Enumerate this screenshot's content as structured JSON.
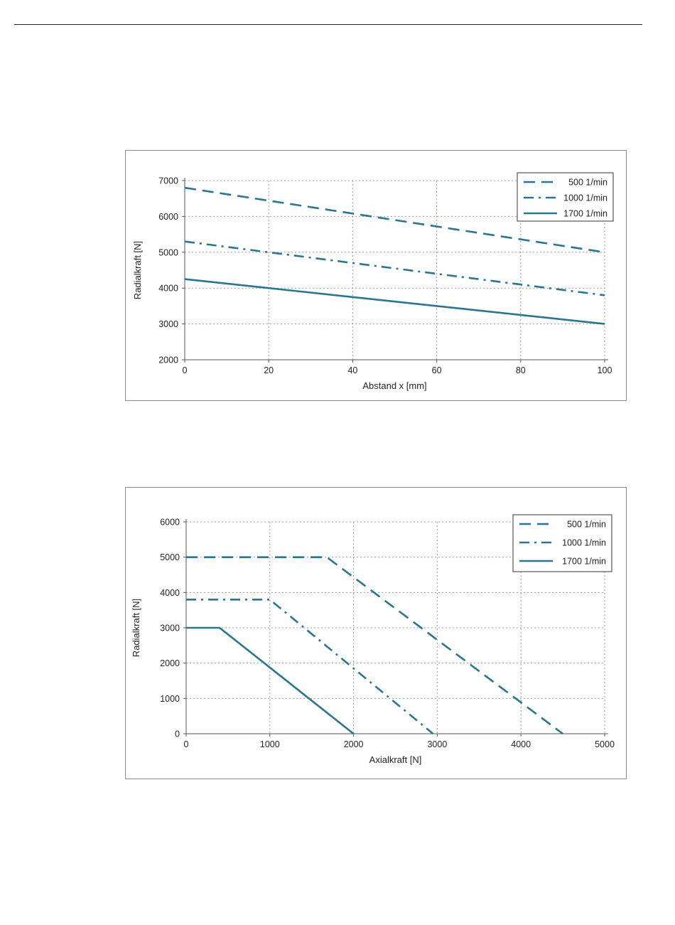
{
  "colors": {
    "line": "#2b7591",
    "grid": "#9a9a9a",
    "axis": "#555555"
  },
  "chart_data": [
    {
      "type": "line",
      "title": "",
      "xlabel": "Abstand x [mm]",
      "ylabel": "Radialkraft [N]",
      "xlim": [
        0,
        100
      ],
      "ylim": [
        2000,
        7000
      ],
      "xticks": [
        0,
        20,
        40,
        60,
        80,
        100
      ],
      "yticks": [
        2000,
        3000,
        4000,
        5000,
        6000,
        7000
      ],
      "grid": true,
      "legend_position": "top-right",
      "series": [
        {
          "name": "500  1/min",
          "style": "dashed",
          "x": [
            0,
            100
          ],
          "y": [
            6800,
            5000
          ]
        },
        {
          "name": "1000  1/min",
          "style": "dashdot",
          "x": [
            0,
            100
          ],
          "y": [
            5300,
            3800
          ]
        },
        {
          "name": "1700  1/min",
          "style": "solid",
          "x": [
            0,
            100
          ],
          "y": [
            4250,
            3000
          ]
        }
      ]
    },
    {
      "type": "line",
      "title": "",
      "xlabel": "Axialkraft [N]",
      "ylabel": "Radialkraft [N]",
      "xlim": [
        0,
        5000
      ],
      "ylim": [
        0,
        6000
      ],
      "xticks": [
        0,
        1000,
        2000,
        3000,
        4000,
        5000
      ],
      "yticks": [
        0,
        1000,
        2000,
        3000,
        4000,
        5000,
        6000
      ],
      "grid": true,
      "legend_position": "top-right",
      "series": [
        {
          "name": "500 1/min",
          "style": "dashed",
          "x": [
            0,
            1680,
            4500
          ],
          "y": [
            5000,
            5000,
            0
          ]
        },
        {
          "name": "1000 1/min",
          "style": "dashdot",
          "x": [
            0,
            1000,
            2950
          ],
          "y": [
            3800,
            3800,
            0
          ]
        },
        {
          "name": "1700 1/min",
          "style": "solid",
          "x": [
            0,
            400,
            2000
          ],
          "y": [
            3000,
            3000,
            0
          ]
        }
      ]
    }
  ]
}
